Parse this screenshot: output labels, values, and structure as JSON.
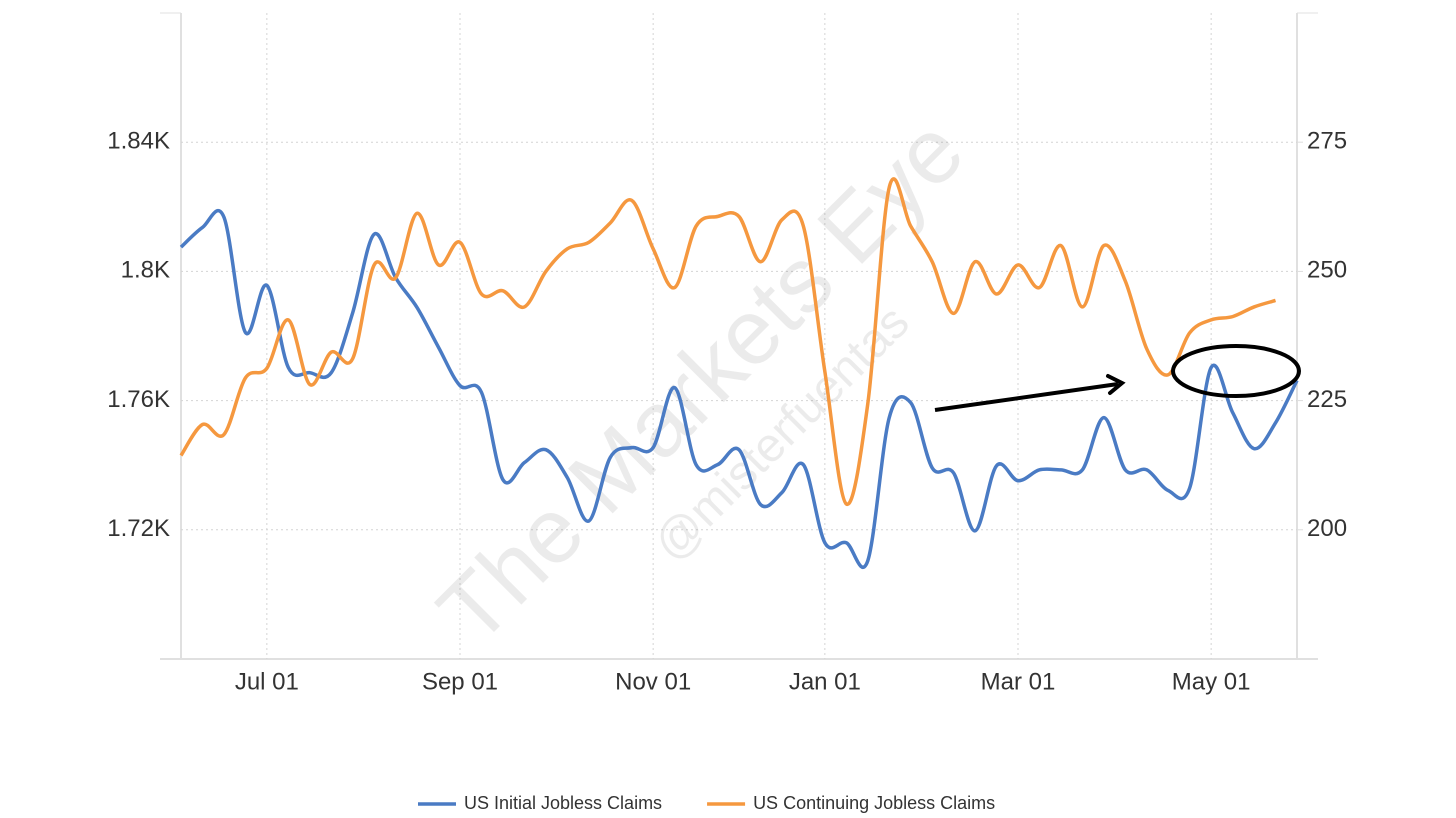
{
  "chart_data": {
    "type": "line",
    "watermark": [
      "The Markets Eye",
      "@misterfuentas"
    ],
    "categories": [
      null,
      null,
      null,
      null,
      "Jul 01",
      null,
      null,
      null,
      null,
      null,
      null,
      null,
      null,
      "Sep 01",
      null,
      null,
      null,
      null,
      null,
      null,
      null,
      null,
      "Nov 01",
      null,
      null,
      null,
      null,
      null,
      null,
      null,
      "Jan 01",
      null,
      null,
      null,
      null,
      null,
      null,
      null,
      null,
      "Mar 01",
      null,
      null,
      null,
      null,
      null,
      null,
      null,
      null,
      "May 01",
      null,
      null,
      null,
      null
    ],
    "series": [
      {
        "name": "US Initial Jobless Claims",
        "color": "#4a7bc4",
        "axis": "y2",
        "values": [
          254.7,
          258.5,
          260.5,
          238.2,
          247.3,
          231.4,
          230.4,
          230.4,
          242,
          257.2,
          248.8,
          243,
          235.3,
          227.9,
          226.6,
          209.7,
          213,
          215.5,
          210.1,
          201.7,
          214,
          215.9,
          215.9,
          227.5,
          212.6,
          212.6,
          215.5,
          204.9,
          207.2,
          212.6,
          197.5,
          197.5,
          194,
          221.7,
          224.6,
          212,
          211,
          199.8,
          212.4,
          209.5,
          211.6,
          211.6,
          211.6,
          221.7,
          211.6,
          211.6,
          207.6,
          208.1,
          231.4,
          222.7,
          215.7,
          220.7,
          228.9
        ]
      },
      {
        "name": "US Continuing Jobless Claims",
        "color": "#f5983f",
        "values": [
          1743,
          1752.6,
          1749.5,
          1767,
          1770,
          1785,
          1765,
          1775,
          1773,
          1802,
          1798,
          1818,
          1802,
          1809,
          1793,
          1794,
          1789,
          1800,
          1807,
          1809,
          1815,
          1822,
          1807,
          1795,
          1814,
          1817,
          1817,
          1803,
          1816,
          1814,
          1769,
          1728,
          1759,
          1826,
          1814,
          1803,
          1787,
          1803,
          1793,
          1802,
          1795,
          1808,
          1789,
          1808,
          1797,
          1776,
          1768,
          1781,
          1785,
          1786,
          1789,
          1791,
          null
        ]
      }
    ],
    "ylim": [
      1680,
      1880
    ],
    "yticks": [
      {
        "value": 1720,
        "label": "1.72K"
      },
      {
        "value": 1760,
        "label": "1.76K"
      },
      {
        "value": 1800,
        "label": "1.8K"
      },
      {
        "value": 1840,
        "label": "1.84K"
      }
    ],
    "y2lim": [
      175,
      300
    ],
    "y2ticks": [
      200,
      225,
      250,
      275
    ],
    "grid": true
  }
}
